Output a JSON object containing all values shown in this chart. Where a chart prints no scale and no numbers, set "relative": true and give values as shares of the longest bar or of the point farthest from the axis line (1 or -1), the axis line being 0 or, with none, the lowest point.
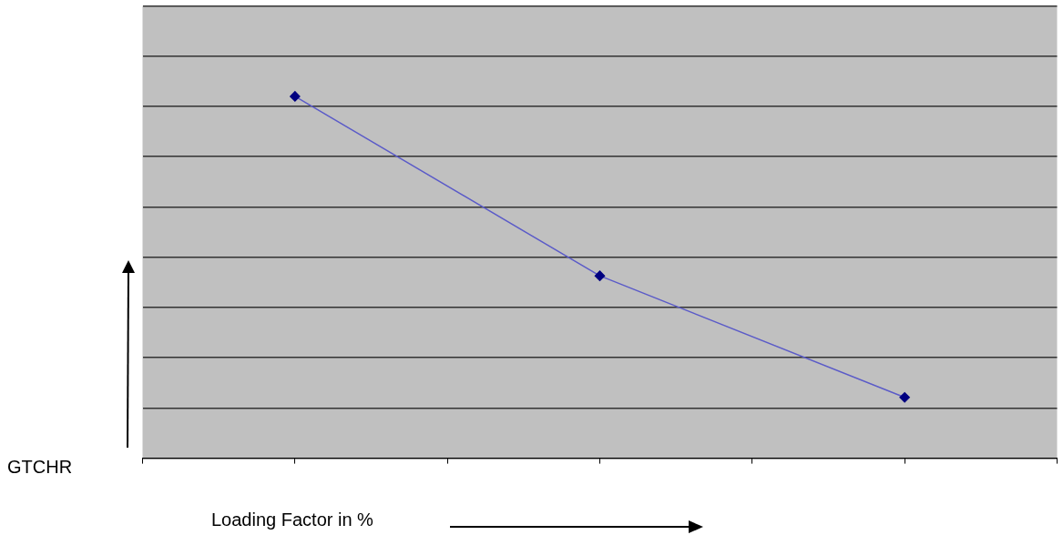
{
  "chart_data": {
    "type": "line",
    "relative": true,
    "xlabel": "Loading Factor in %",
    "ylabel": "GTCHR",
    "categories": [
      null,
      null,
      null,
      null,
      null,
      null,
      null
    ],
    "series": [
      {
        "color": "#5b5bc8",
        "values": [
          null,
          1,
          null,
          0.504,
          null,
          0.168,
          null
        ]
      }
    ],
    "grid": "y",
    "marker": "diamond",
    "legend": false
  }
}
